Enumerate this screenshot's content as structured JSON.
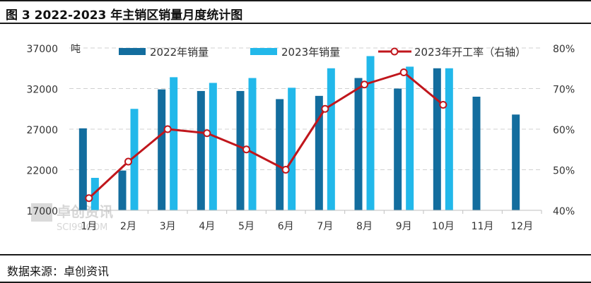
{
  "page": {
    "title": "图 3  2022-2023 年主销区销量月度统计图",
    "source": "数据来源：卓创资讯",
    "watermark": {
      "cn": "卓创资讯",
      "en": "SCI99.COM"
    }
  },
  "chart_data": {
    "type": "bar",
    "categories": [
      "1月",
      "2月",
      "3月",
      "4月",
      "5月",
      "6月",
      "7月",
      "8月",
      "9月",
      "10月",
      "11月",
      "12月"
    ],
    "series": [
      {
        "name": "2022年销量",
        "type": "bar",
        "axis": "left",
        "color": "#136d9e",
        "values": [
          27100,
          21900,
          31900,
          31700,
          31700,
          30700,
          31100,
          33300,
          32000,
          34500,
          31000,
          28800
        ]
      },
      {
        "name": "2023年销量",
        "type": "bar",
        "axis": "left",
        "color": "#22b8ea",
        "values": [
          21000,
          29500,
          33400,
          32700,
          33300,
          32100,
          34500,
          36000,
          34700,
          34500,
          null,
          null
        ]
      },
      {
        "name": "2023年开工率（右轴）",
        "type": "line",
        "axis": "right",
        "color": "#c0161c",
        "values": [
          43,
          52,
          60,
          59,
          55,
          50,
          65,
          71,
          74,
          66,
          null,
          null
        ]
      }
    ],
    "y_left": {
      "unit": "吨",
      "min": 17000,
      "max": 37000,
      "ticks": [
        17000,
        22000,
        27000,
        32000,
        37000
      ]
    },
    "y_right": {
      "min": 40,
      "max": 80,
      "ticks": [
        "40%",
        "50%",
        "60%",
        "70%",
        "80%"
      ],
      "tick_values": [
        40,
        50,
        60,
        70,
        80
      ]
    },
    "grid": "horizontal-dashed",
    "legend_position": "top"
  }
}
